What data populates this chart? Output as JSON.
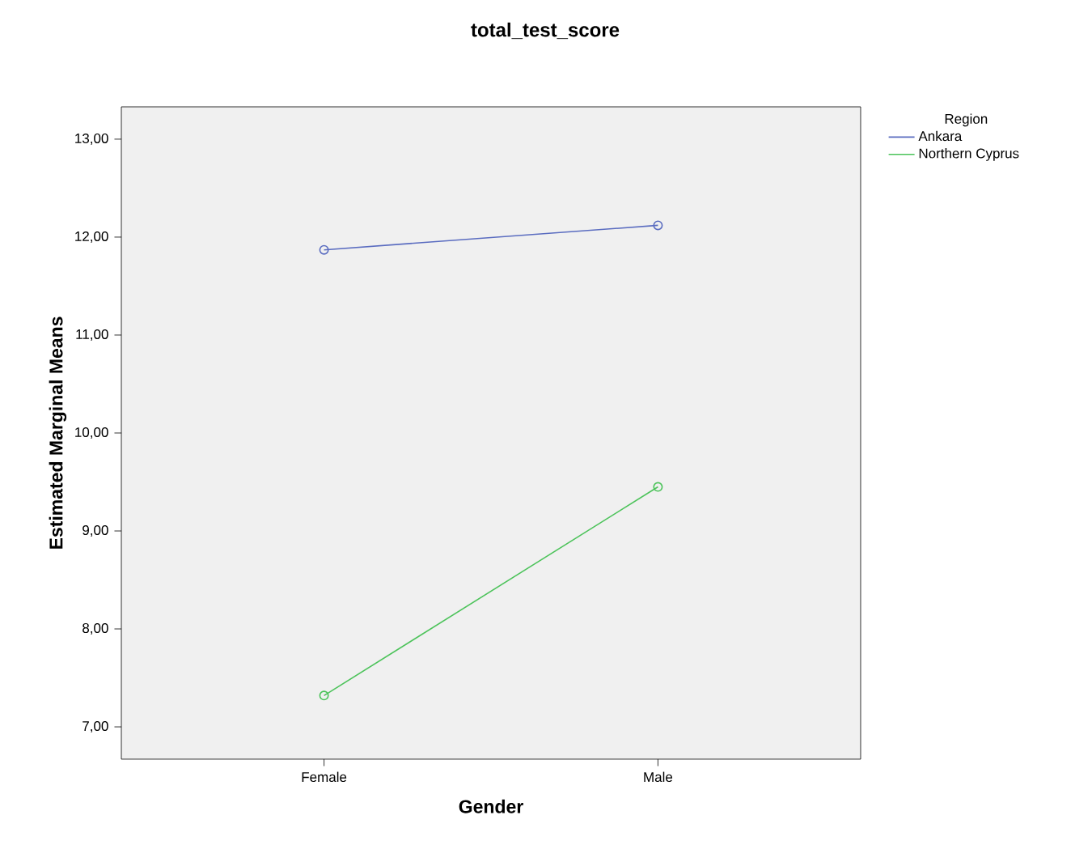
{
  "chart_data": {
    "type": "line",
    "title": "total_test_score",
    "xlabel": "Gender",
    "ylabel": "Estimated Marginal Means",
    "legend_title": "Region",
    "categories": [
      "Female",
      "Male"
    ],
    "series": [
      {
        "name": "Ankara",
        "color": "#5a6cc0",
        "values": [
          11.87,
          12.12
        ]
      },
      {
        "name": "Northern Cyprus",
        "color": "#4cc35a",
        "values": [
          7.32,
          9.45
        ]
      }
    ],
    "ylim": [
      6.67,
      13.33
    ],
    "yticks": [
      {
        "value": 7,
        "label": "7,00"
      },
      {
        "value": 8,
        "label": "8,00"
      },
      {
        "value": 9,
        "label": "9,00"
      },
      {
        "value": 10,
        "label": "10,00"
      },
      {
        "value": 11,
        "label": "11,00"
      },
      {
        "value": 12,
        "label": "12,00"
      },
      {
        "value": 13,
        "label": "13,00"
      }
    ],
    "grid": false,
    "legend": "top right",
    "marker": "circle",
    "line_style": "solid"
  }
}
